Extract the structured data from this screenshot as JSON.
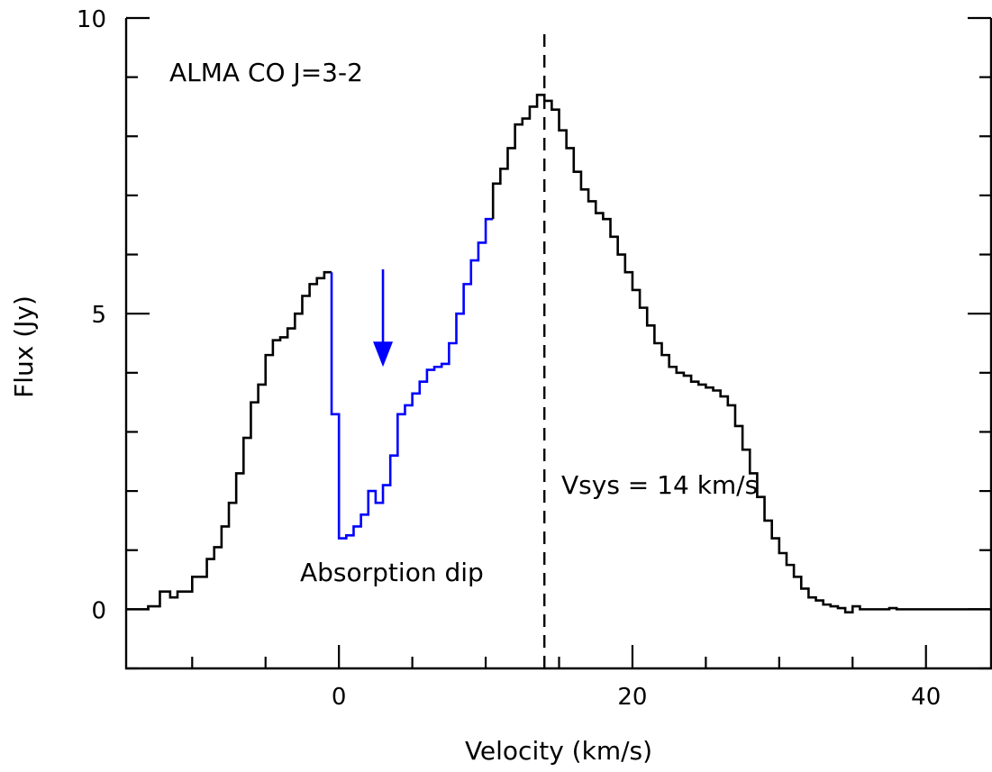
{
  "chart_data": {
    "type": "line",
    "xlabel": "Velocity (km/s)",
    "ylabel": "Flux (Jy)",
    "xlim": [
      -14.5,
      44.5
    ],
    "ylim": [
      -1,
      10
    ],
    "x_ticks": [
      0,
      20,
      40
    ],
    "x_tick_labels": [
      "0",
      "20",
      "40"
    ],
    "y_ticks": [
      0,
      5,
      10
    ],
    "y_tick_labels": [
      "0",
      "5",
      "10"
    ],
    "x_minor_step": 5,
    "y_minor_step": 1,
    "grid": false,
    "series": [
      {
        "color": "#000000",
        "step": true,
        "highlight": {
          "x_range": [
            -0.8,
            10.5
          ],
          "color": "#0000ff"
        },
        "x": [
          -14.5,
          -13,
          -12.2,
          -11.5,
          -11,
          -10,
          -9,
          -8.5,
          -8,
          -7.5,
          -7,
          -6.5,
          -6,
          -5.5,
          -5,
          -4.5,
          -4,
          -3.5,
          -3,
          -2.5,
          -2,
          -1.5,
          -1,
          -0.5,
          0,
          0.5,
          1,
          1.5,
          2,
          2.5,
          3,
          3.5,
          4,
          4.5,
          5,
          5.5,
          6,
          6.5,
          7,
          7.5,
          8,
          8.5,
          9,
          9.5,
          10,
          10.5,
          11,
          11.5,
          12,
          12.5,
          13,
          13.5,
          14,
          14.5,
          15,
          15.5,
          16,
          16.5,
          17,
          17.5,
          18,
          18.5,
          19,
          19.5,
          20,
          20.5,
          21,
          21.5,
          22,
          22.5,
          23,
          23.5,
          24,
          24.5,
          25,
          25.5,
          26,
          26.5,
          27,
          27.5,
          28,
          28.5,
          29,
          29.5,
          30,
          30.5,
          31,
          31.5,
          32,
          32.5,
          33,
          33.5,
          34,
          34.5,
          35,
          35.5,
          36,
          36.5,
          37,
          37.5,
          38,
          38.5,
          39,
          39.5,
          40,
          40.5,
          41,
          41.5,
          42,
          42.5,
          43,
          43.5,
          44,
          44.5
        ],
        "y": [
          0.0,
          0.05,
          0.3,
          0.2,
          0.3,
          0.55,
          0.85,
          1.05,
          1.4,
          1.8,
          2.3,
          2.9,
          3.5,
          3.8,
          4.3,
          4.55,
          4.6,
          4.75,
          5.0,
          5.3,
          5.5,
          5.6,
          5.7,
          3.3,
          1.2,
          1.25,
          1.4,
          1.6,
          2.0,
          1.8,
          2.1,
          2.6,
          3.3,
          3.45,
          3.65,
          3.85,
          4.05,
          4.1,
          4.15,
          4.5,
          5.0,
          5.5,
          5.9,
          6.2,
          6.6,
          7.2,
          7.45,
          7.8,
          8.2,
          8.3,
          8.5,
          8.7,
          8.6,
          8.45,
          8.1,
          7.8,
          7.4,
          7.1,
          6.9,
          6.7,
          6.6,
          6.3,
          6.0,
          5.7,
          5.4,
          5.1,
          4.8,
          4.5,
          4.3,
          4.1,
          4.0,
          3.95,
          3.85,
          3.8,
          3.75,
          3.7,
          3.6,
          3.45,
          3.1,
          2.7,
          2.3,
          1.9,
          1.5,
          1.2,
          0.95,
          0.75,
          0.55,
          0.35,
          0.2,
          0.15,
          0.08,
          0.05,
          0.02,
          -0.05,
          0.05,
          0.0,
          0.0,
          0.0,
          0.0,
          0.02,
          0.0,
          0.0,
          0.0,
          0.0,
          0.0,
          0.0,
          0.0,
          0.0,
          0.0,
          0.0,
          0.0,
          0.0,
          0.0,
          0.0
        ]
      }
    ],
    "vline": {
      "x": 14,
      "style": "dashed"
    },
    "arrow": {
      "x": 3,
      "y_from": 5.75,
      "y_to": 4.1,
      "color": "#0000ff"
    },
    "annotations": {
      "line_name": "ALMA CO J=3-2",
      "vsys": "Vsys = 14 km/s",
      "dip": "Absorption dip",
      "dip_color": "#0000ff"
    }
  }
}
